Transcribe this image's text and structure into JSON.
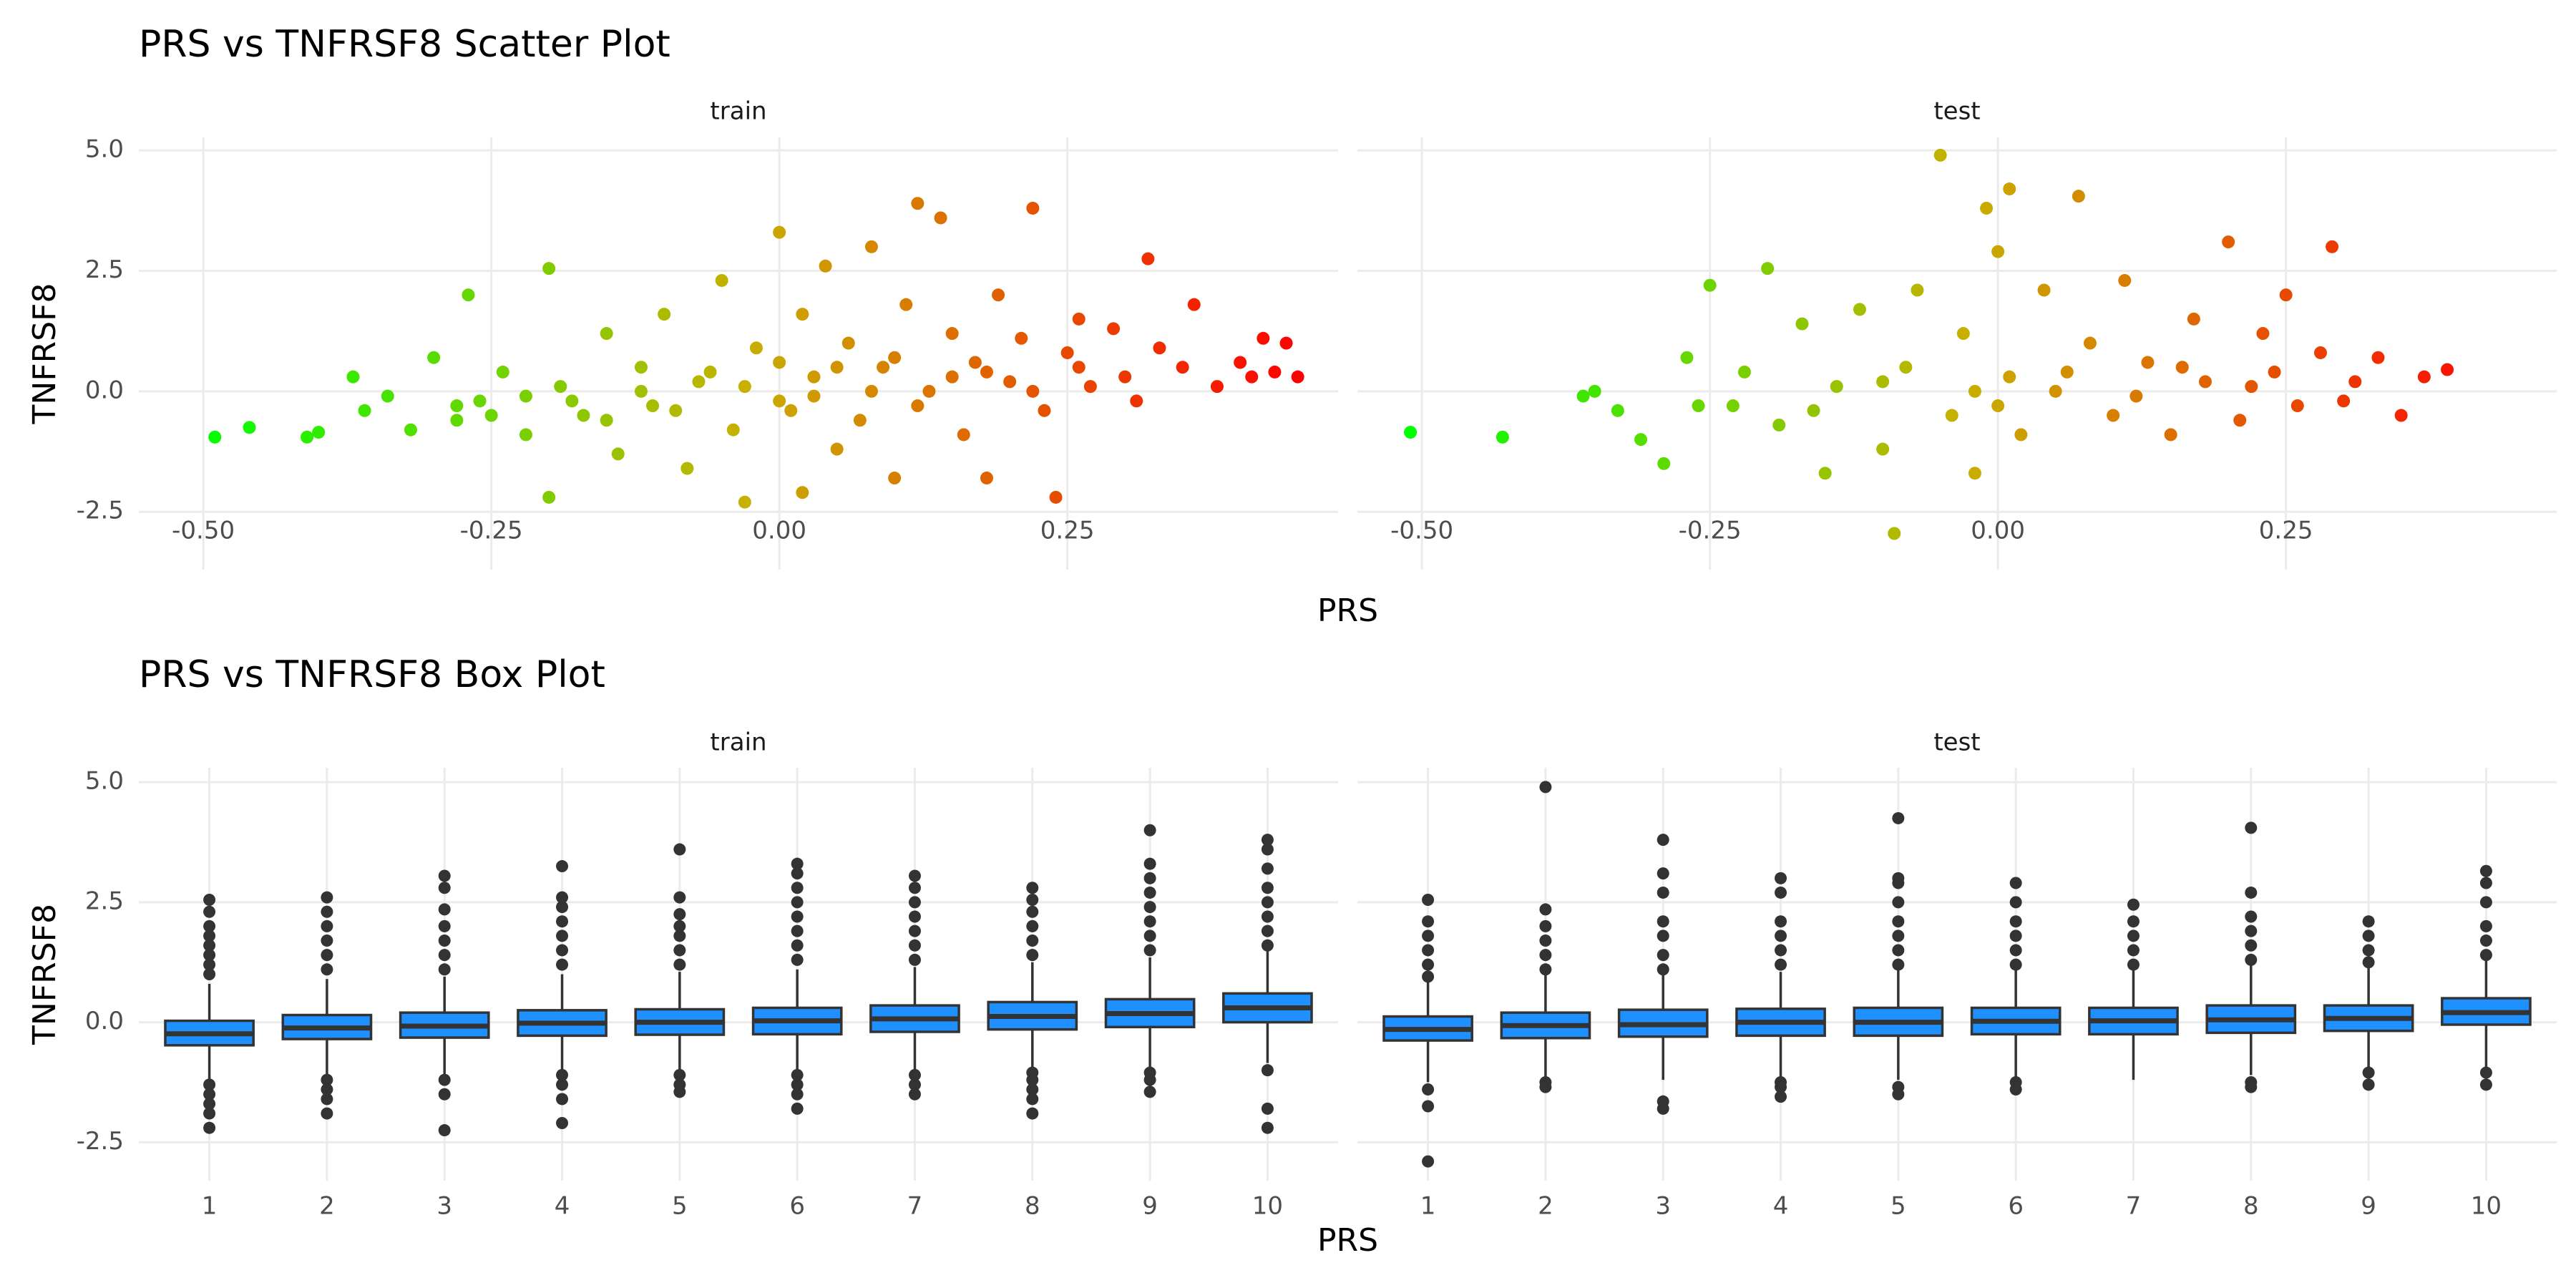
{
  "chart_data": [
    {
      "type": "scatter",
      "title": "PRS vs TNFRSF8 Scatter Plot",
      "x_label": "PRS",
      "y_label": "TNFRSF8",
      "xlim": [
        -0.556,
        0.485
      ],
      "ylim": [
        -3.7,
        5.27
      ],
      "xticks": [
        {
          "value": -0.5,
          "label": "-0.50"
        },
        {
          "value": -0.25,
          "label": "-0.25"
        },
        {
          "value": 0,
          "label": "0.00"
        },
        {
          "value": 0.25,
          "label": "0.25"
        }
      ],
      "yticks": [
        {
          "value": -2.5,
          "label": "-2.5"
        },
        {
          "value": 0,
          "label": "0.0"
        },
        {
          "value": 2.5,
          "label": "2.5"
        },
        {
          "value": 5,
          "label": "5.0"
        }
      ],
      "grid": true,
      "color_scale": [
        "#00ff00",
        "#c8b000",
        "#ff0000"
      ],
      "panels": [
        {
          "name": "train",
          "x": [
            -0.49,
            -0.46,
            -0.41,
            -0.4,
            -0.37,
            -0.36,
            -0.34,
            -0.32,
            -0.3,
            -0.28,
            -0.27,
            -0.26,
            -0.24,
            -0.22,
            -0.2,
            -0.2,
            -0.19,
            -0.17,
            -0.15,
            -0.14,
            -0.12,
            -0.11,
            -0.1,
            -0.08,
            -0.07,
            -0.05,
            -0.04,
            -0.03,
            -0.02,
            0,
            0.01,
            0.02,
            0.02,
            0.03,
            0.04,
            0.05,
            0.06,
            0.07,
            0.08,
            0.09,
            0.1,
            0.11,
            0.12,
            0.13,
            0.14,
            0.15,
            0.16,
            0.17,
            0.18,
            0.19,
            0.2,
            0.21,
            0.22,
            0.23,
            0.24,
            0.25,
            0.26,
            0.27,
            0.29,
            0.31,
            0.32,
            0.33,
            0.35,
            0.36,
            0.38,
            0.4,
            0.41,
            0.42,
            0.43,
            0.44,
            0.45,
            -0.28,
            -0.25,
            -0.22,
            -0.18,
            -0.15,
            -0.12,
            -0.09,
            -0.06,
            -0.03,
            0,
            0,
            0.03,
            0.05,
            0.08,
            0.1,
            0.12,
            0.15,
            0.18,
            0.22,
            0.26,
            0.3
          ],
          "y": [
            -0.95,
            -0.75,
            -0.95,
            -0.85,
            0.3,
            -0.4,
            -0.1,
            -0.8,
            0.7,
            -0.6,
            2.0,
            -0.2,
            0.4,
            -0.9,
            2.55,
            -2.2,
            0.1,
            -0.5,
            1.2,
            -1.3,
            0.5,
            -0.3,
            1.6,
            -1.6,
            0.2,
            2.3,
            -0.8,
            -2.3,
            0.9,
            3.3,
            -0.4,
            -2.1,
            1.6,
            0.3,
            2.6,
            -1.2,
            1.0,
            -0.6,
            3.0,
            0.5,
            -1.8,
            1.8,
            3.9,
            0.0,
            3.6,
            1.2,
            -0.9,
            0.6,
            -1.8,
            2.0,
            0.2,
            1.1,
            3.8,
            -0.4,
            -2.2,
            0.8,
            1.5,
            0.1,
            1.3,
            -0.2,
            2.75,
            0.9,
            0.5,
            1.8,
            0.1,
            0.6,
            0.3,
            1.1,
            0.4,
            1.0,
            0.3,
            -0.3,
            -0.5,
            -0.1,
            -0.2,
            -0.6,
            0.0,
            -0.4,
            0.4,
            0.1,
            -0.2,
            0.6,
            -0.1,
            0.5,
            0.0,
            0.7,
            -0.3,
            0.3,
            0.4,
            0.0,
            0.5,
            0.3
          ]
        },
        {
          "name": "test",
          "x": [
            -0.51,
            -0.43,
            -0.36,
            -0.35,
            -0.33,
            -0.31,
            -0.29,
            -0.27,
            -0.25,
            -0.23,
            -0.22,
            -0.2,
            -0.19,
            -0.17,
            -0.15,
            -0.14,
            -0.12,
            -0.1,
            -0.09,
            -0.08,
            -0.07,
            -0.05,
            -0.04,
            -0.03,
            -0.02,
            -0.01,
            0,
            0.01,
            0.02,
            0.04,
            0.05,
            0.07,
            0.08,
            0.1,
            0.11,
            0.13,
            0.15,
            0.17,
            0.18,
            0.2,
            0.21,
            0.23,
            0.24,
            0.25,
            0.26,
            0.28,
            0.29,
            0.31,
            0.33,
            0.35,
            0.37,
            0.39,
            0.01,
            -0.02,
            0,
            -0.1,
            0.06,
            0.12,
            0.16,
            0.22,
            -0.16,
            -0.26,
            0.3
          ],
          "y": [
            -0.85,
            -0.95,
            -0.1,
            0.0,
            -0.4,
            -1.0,
            -1.5,
            0.7,
            2.2,
            -0.3,
            0.4,
            2.55,
            -0.7,
            1.4,
            -1.7,
            0.1,
            1.7,
            -1.2,
            -2.95,
            0.5,
            2.1,
            4.9,
            -0.5,
            1.2,
            -1.7,
            3.8,
            2.9,
            0.3,
            -0.9,
            2.1,
            0.0,
            4.05,
            1.0,
            -0.5,
            2.3,
            0.6,
            -0.9,
            1.5,
            0.2,
            3.1,
            -0.6,
            1.2,
            0.4,
            2.0,
            -0.3,
            0.8,
            3.0,
            0.2,
            0.7,
            -0.5,
            0.3,
            0.45,
            4.2,
            0.0,
            -0.3,
            0.2,
            0.4,
            -0.1,
            0.5,
            0.1,
            -0.4,
            -0.3,
            -0.2
          ]
        }
      ]
    },
    {
      "type": "box",
      "title": "PRS vs TNFRSF8 Box Plot",
      "x_label": "PRS",
      "y_label": "TNFRSF8",
      "ylim": [
        -3.3,
        5.3
      ],
      "yticks": [
        {
          "value": -2.5,
          "label": "-2.5"
        },
        {
          "value": 0,
          "label": "0.0"
        },
        {
          "value": 2.5,
          "label": "2.5"
        },
        {
          "value": 5,
          "label": "5.0"
        }
      ],
      "grid": true,
      "color": "#1e90ff",
      "categories": [
        "1",
        "2",
        "3",
        "4",
        "5",
        "6",
        "7",
        "8",
        "9",
        "10"
      ],
      "panels": [
        {
          "name": "train",
          "q1": [
            -0.48,
            -0.35,
            -0.32,
            -0.28,
            -0.26,
            -0.25,
            -0.2,
            -0.15,
            -0.1,
            0.0
          ],
          "median": [
            -0.24,
            -0.12,
            -0.08,
            -0.02,
            0.0,
            0.03,
            0.07,
            0.12,
            0.18,
            0.3
          ],
          "q3": [
            0.03,
            0.15,
            0.2,
            0.25,
            0.27,
            0.3,
            0.35,
            0.42,
            0.48,
            0.6
          ],
          "whisker_low": [
            -1.2,
            -1.1,
            -1.1,
            -1.05,
            -1.05,
            -1.05,
            -1.0,
            -0.95,
            -0.95,
            -0.85
          ],
          "whisker_high": [
            0.8,
            0.9,
            0.95,
            1.0,
            1.05,
            1.1,
            1.15,
            1.25,
            1.35,
            1.5
          ],
          "outliers": [
            [
              1.0,
              1.2,
              1.4,
              1.6,
              1.8,
              2.0,
              2.3,
              2.55,
              -1.3,
              -1.5,
              -1.7,
              -1.9,
              -2.2
            ],
            [
              1.1,
              1.4,
              1.7,
              2.0,
              2.3,
              2.6,
              -1.2,
              -1.4,
              -1.6,
              -1.9
            ],
            [
              1.1,
              1.4,
              1.7,
              2.0,
              2.35,
              2.8,
              3.05,
              -1.2,
              -1.5,
              -2.25
            ],
            [
              1.2,
              1.5,
              1.8,
              2.1,
              2.4,
              2.6,
              3.25,
              -1.1,
              -1.3,
              -1.6,
              -2.1
            ],
            [
              1.2,
              1.5,
              1.8,
              2.0,
              2.25,
              2.6,
              3.6,
              -1.1,
              -1.3,
              -1.45
            ],
            [
              1.3,
              1.6,
              1.9,
              2.2,
              2.5,
              2.8,
              3.1,
              3.3,
              -1.1,
              -1.3,
              -1.5,
              -1.8
            ],
            [
              1.3,
              1.6,
              1.9,
              2.2,
              2.5,
              2.8,
              3.05,
              -1.1,
              -1.3,
              -1.5
            ],
            [
              1.4,
              1.7,
              2.0,
              2.3,
              2.55,
              2.8,
              -1.05,
              -1.2,
              -1.4,
              -1.6,
              -1.9
            ],
            [
              1.5,
              1.8,
              2.1,
              2.4,
              2.7,
              3.0,
              3.3,
              4.0,
              -1.05,
              -1.2,
              -1.45
            ],
            [
              1.6,
              1.9,
              2.2,
              2.5,
              2.8,
              3.2,
              3.6,
              3.8,
              -1.0,
              -1.8,
              -2.2
            ]
          ]
        },
        {
          "name": "test",
          "q1": [
            -0.38,
            -0.33,
            -0.3,
            -0.28,
            -0.28,
            -0.25,
            -0.25,
            -0.22,
            -0.18,
            -0.05
          ],
          "median": [
            -0.15,
            -0.07,
            -0.05,
            0.0,
            0.0,
            0.02,
            0.03,
            0.05,
            0.08,
            0.2
          ],
          "q3": [
            0.12,
            0.2,
            0.26,
            0.28,
            0.3,
            0.3,
            0.3,
            0.35,
            0.35,
            0.5
          ],
          "whisker_low": [
            -1.25,
            -1.15,
            -1.2,
            -1.15,
            -1.2,
            -1.15,
            -1.2,
            -1.1,
            -0.95,
            -0.95
          ],
          "whisker_high": [
            0.85,
            1.0,
            1.0,
            1.05,
            1.1,
            1.1,
            1.1,
            1.2,
            1.15,
            1.3
          ],
          "outliers": [
            [
              0.95,
              1.2,
              1.5,
              1.8,
              2.1,
              2.55,
              -1.4,
              -1.75,
              -2.9
            ],
            [
              1.1,
              1.4,
              1.7,
              2.0,
              2.35,
              4.9,
              -1.25,
              -1.35
            ],
            [
              1.1,
              1.4,
              1.8,
              2.1,
              2.7,
              3.1,
              3.8,
              -1.65,
              -1.8
            ],
            [
              1.2,
              1.5,
              1.8,
              2.1,
              2.7,
              3.0,
              -1.25,
              -1.35,
              -1.55
            ],
            [
              1.2,
              1.5,
              1.8,
              2.1,
              2.5,
              2.9,
              3.0,
              4.25,
              -1.35,
              -1.5
            ],
            [
              1.2,
              1.5,
              1.8,
              2.1,
              2.5,
              2.9,
              -1.25,
              -1.4
            ],
            [
              1.2,
              1.5,
              1.8,
              2.1,
              2.45
            ],
            [
              1.3,
              1.6,
              1.9,
              2.2,
              2.7,
              4.05,
              -1.25,
              -1.35
            ],
            [
              1.25,
              1.5,
              1.8,
              2.1,
              -1.05,
              -1.3
            ],
            [
              1.4,
              1.7,
              2.0,
              2.5,
              2.9,
              3.15,
              -1.05,
              -1.3
            ]
          ]
        }
      ]
    }
  ]
}
